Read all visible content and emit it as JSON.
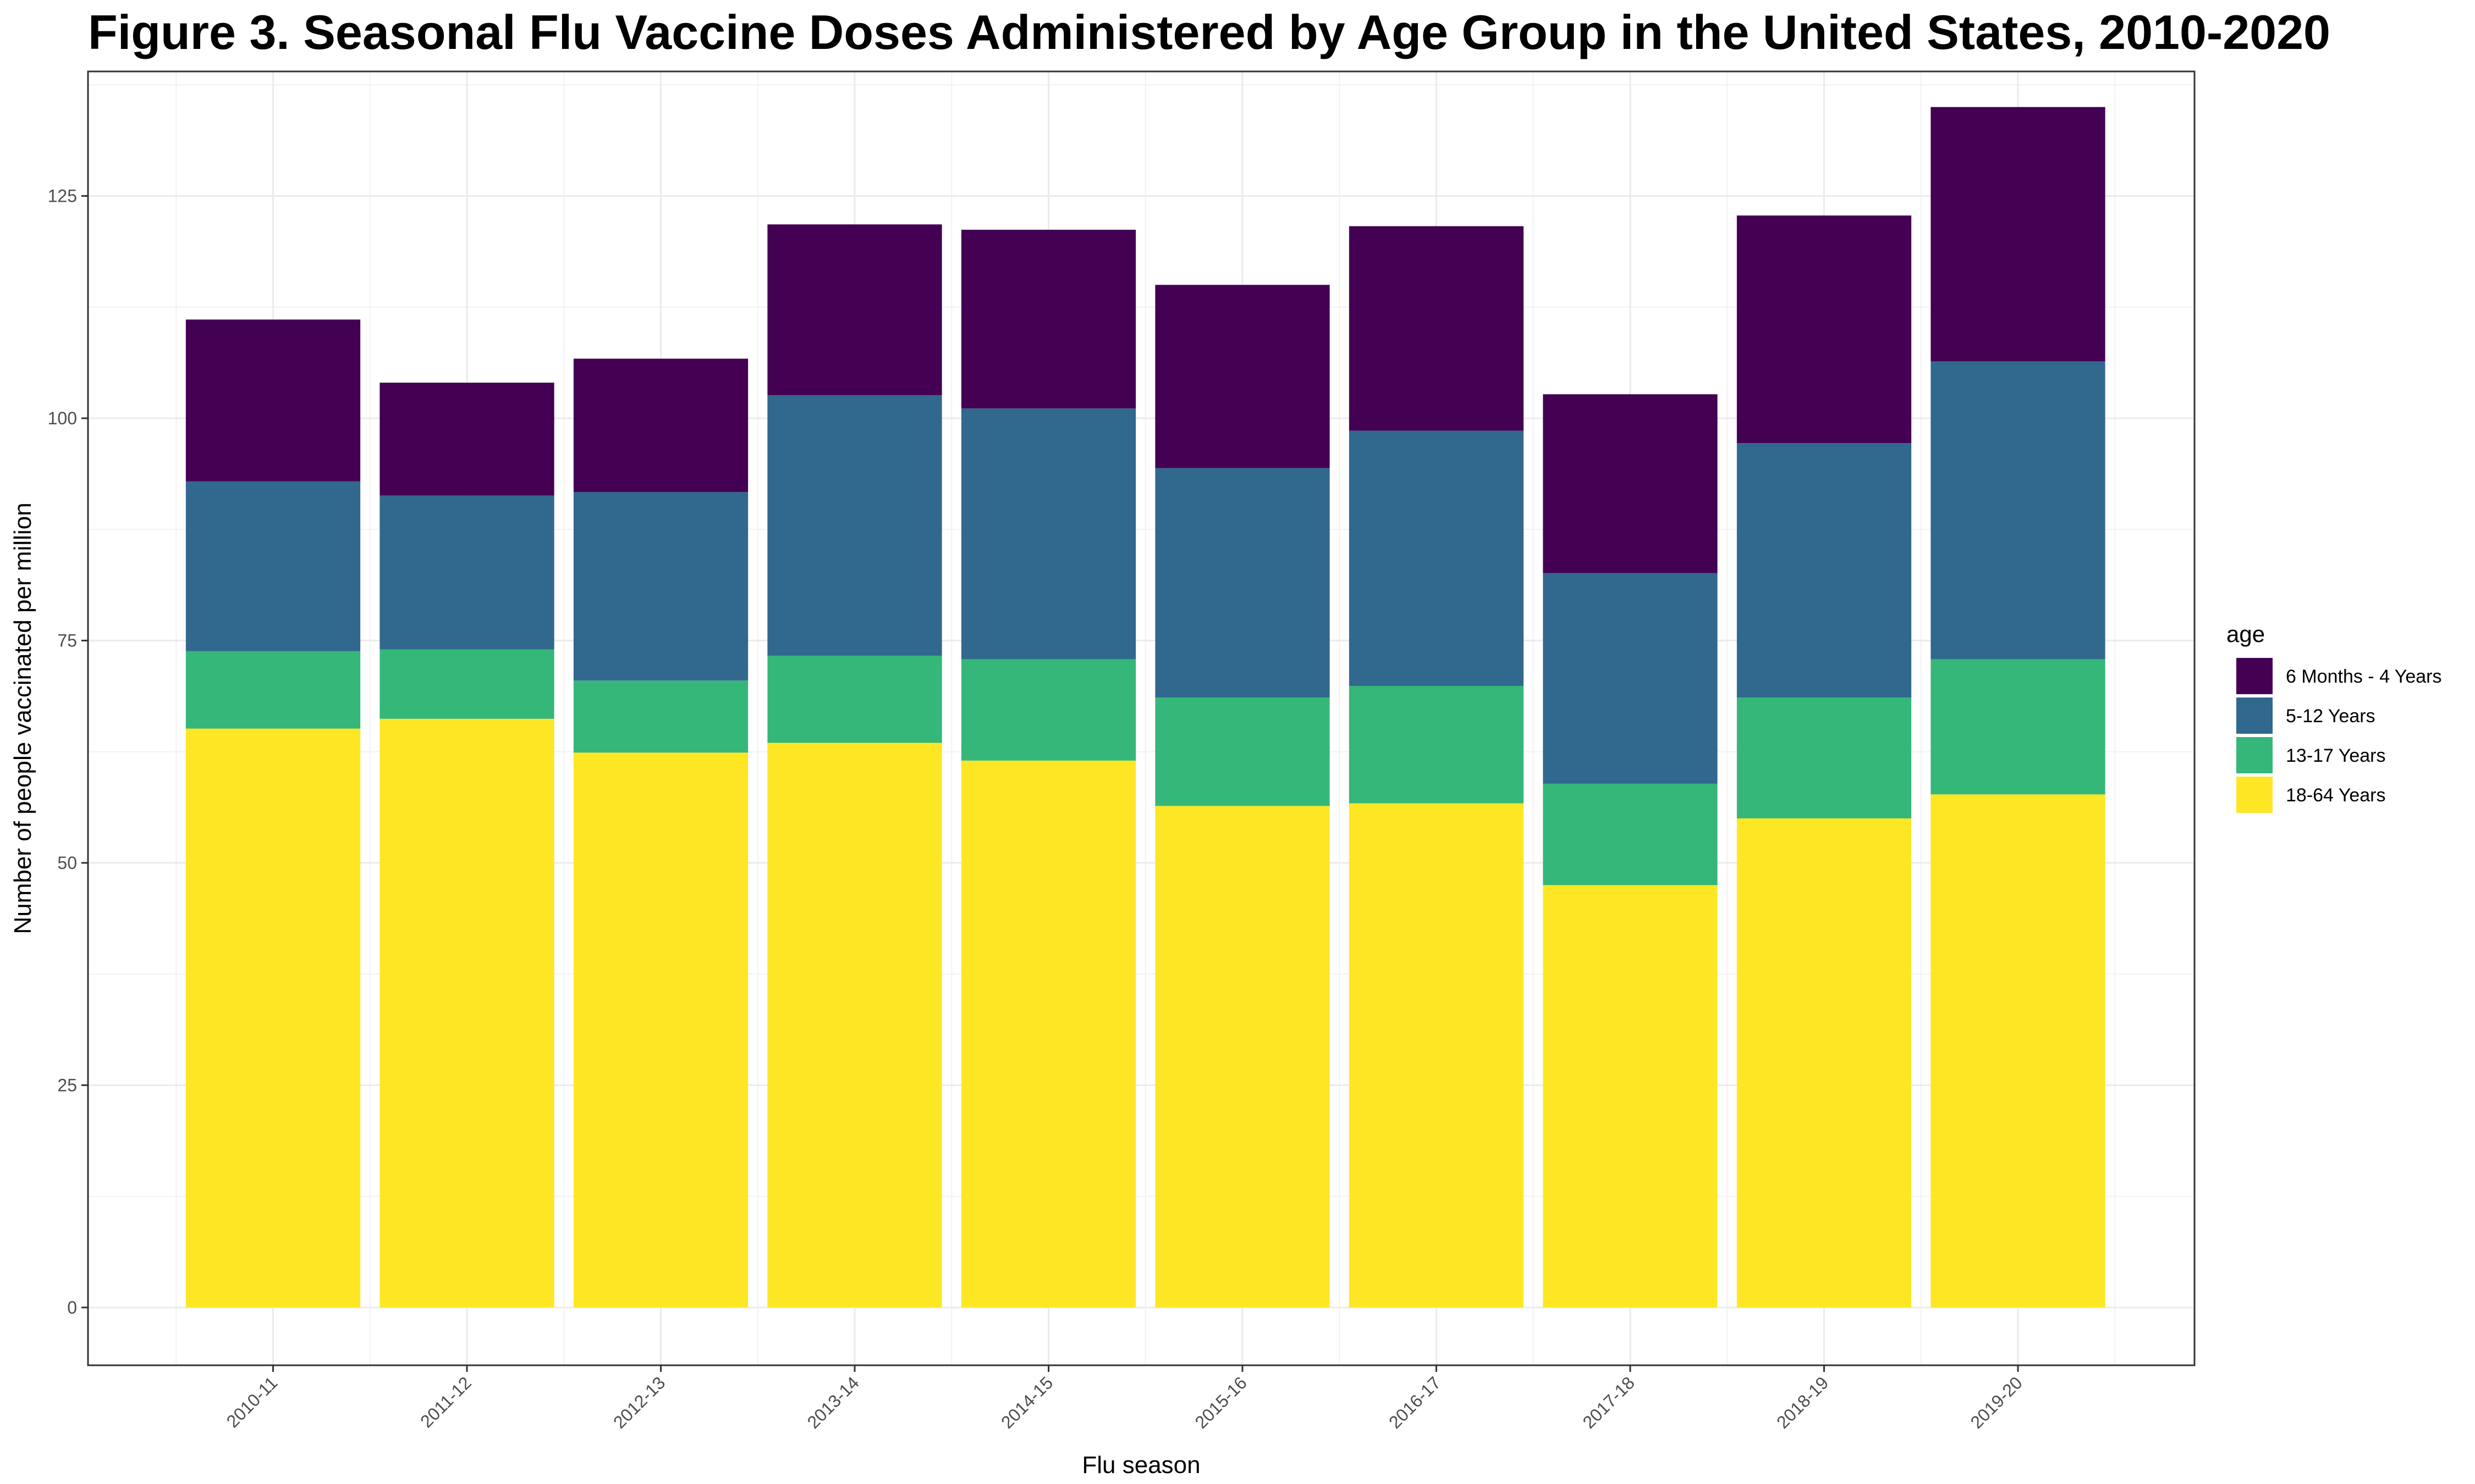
{
  "chart_data": {
    "type": "bar",
    "stacked": true,
    "title": "Figure 3. Seasonal Flu Vaccine Doses Administered by Age Group in the United States, 2010-2020",
    "xlabel": "Flu season",
    "ylabel": "Number of people vaccinated per million",
    "ylim": [
      -6.5,
      139
    ],
    "yticks": [
      0,
      25,
      50,
      75,
      100,
      125
    ],
    "grid": true,
    "legend": {
      "title": "age",
      "position": "right"
    },
    "categories": [
      "2010-11",
      "2011-12",
      "2012-13",
      "2013-14",
      "2014-15",
      "2015-16",
      "2016-17",
      "2017-18",
      "2018-19",
      "2019-20"
    ],
    "series": [
      {
        "name": "18-64 Years",
        "color": "#fde725",
        "values": [
          65.1,
          66.2,
          62.4,
          63.5,
          61.5,
          56.4,
          56.7,
          47.5,
          55.0,
          57.7
        ]
      },
      {
        "name": "13-17 Years",
        "color": "#35b779",
        "values": [
          8.7,
          7.8,
          8.1,
          9.8,
          11.4,
          12.2,
          13.2,
          11.4,
          13.6,
          15.2
        ]
      },
      {
        "name": "5-12 Years",
        "color": "#31688e",
        "values": [
          19.1,
          17.3,
          21.2,
          29.3,
          28.2,
          25.8,
          28.7,
          23.7,
          28.6,
          33.5
        ]
      },
      {
        "name": "6 Months - 4 Years",
        "color": "#440154",
        "values": [
          18.2,
          12.7,
          15.0,
          19.2,
          20.1,
          20.6,
          23.0,
          20.1,
          25.6,
          28.6
        ]
      }
    ],
    "legend_order": [
      "6 Months - 4 Years",
      "5-12 Years",
      "13-17 Years",
      "18-64 Years"
    ]
  }
}
